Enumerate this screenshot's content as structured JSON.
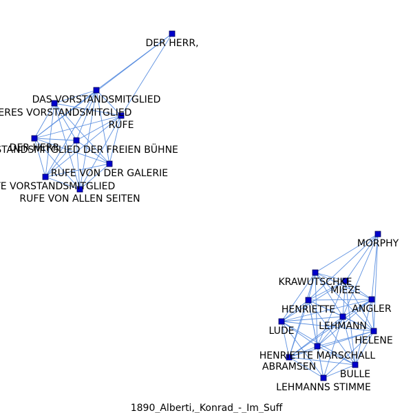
{
  "caption": "1890_Alberti,_Konrad_-_Im_Suff",
  "colors": {
    "node_fill": "#0000cc",
    "node_stroke": "#000055",
    "edge": "#5b8fe0"
  },
  "nodes": [
    {
      "id": "herr_komma",
      "label": "DER HERR,"
    },
    {
      "id": "das_vm",
      "label": "DAS VORSTANDSMITGLIED"
    },
    {
      "id": "anderes_vm",
      "label": "ANDERES VORSTANDSMITGLIED"
    },
    {
      "id": "rufe",
      "label": "RUFE"
    },
    {
      "id": "herr",
      "label": "DER HERR"
    },
    {
      "id": "vm_freie",
      "label": "VORSTANDSMITGLIED DER FREIEN BÜHNE"
    },
    {
      "id": "rufe_galerie",
      "label": "RUFE VON DER GALERIE"
    },
    {
      "id": "erste_vm",
      "label": "ERSTE VORSTANDSMITGLIED"
    },
    {
      "id": "rufe_allen",
      "label": "RUFE VON ALLEN SEITEN"
    },
    {
      "id": "morphy",
      "label": "MORPHY"
    },
    {
      "id": "krawutschke",
      "label": "KRAWUTSCHKE"
    },
    {
      "id": "mieze",
      "label": "MIEZE"
    },
    {
      "id": "henriette",
      "label": "HENRIETTE"
    },
    {
      "id": "angler",
      "label": "ANGLER"
    },
    {
      "id": "lehmann",
      "label": "LEHMANN"
    },
    {
      "id": "lude",
      "label": "LUDE"
    },
    {
      "id": "helene",
      "label": "HELENE"
    },
    {
      "id": "henriette_marschall",
      "label": "HENRIETTE MARSCHALL"
    },
    {
      "id": "abramsen",
      "label": "ABRAMSEN"
    },
    {
      "id": "bulle",
      "label": "BULLE"
    },
    {
      "id": "lehmanns_stimme",
      "label": "LEHMANNS STIMME"
    }
  ],
  "edges": [
    [
      "herr_komma",
      "das_vm"
    ],
    [
      "herr_komma",
      "rufe"
    ],
    [
      "herr_komma",
      "herr"
    ],
    [
      "das_vm",
      "anderes_vm"
    ],
    [
      "das_vm",
      "rufe"
    ],
    [
      "das_vm",
      "herr"
    ],
    [
      "das_vm",
      "vm_freie"
    ],
    [
      "das_vm",
      "rufe_galerie"
    ],
    [
      "das_vm",
      "erste_vm"
    ],
    [
      "das_vm",
      "rufe_allen"
    ],
    [
      "anderes_vm",
      "rufe"
    ],
    [
      "anderes_vm",
      "herr"
    ],
    [
      "anderes_vm",
      "vm_freie"
    ],
    [
      "anderes_vm",
      "rufe_galerie"
    ],
    [
      "anderes_vm",
      "erste_vm"
    ],
    [
      "anderes_vm",
      "rufe_allen"
    ],
    [
      "rufe",
      "herr"
    ],
    [
      "rufe",
      "vm_freie"
    ],
    [
      "rufe",
      "rufe_galerie"
    ],
    [
      "rufe",
      "erste_vm"
    ],
    [
      "rufe",
      "rufe_allen"
    ],
    [
      "herr",
      "vm_freie"
    ],
    [
      "herr",
      "rufe_galerie"
    ],
    [
      "herr",
      "erste_vm"
    ],
    [
      "herr",
      "rufe_allen"
    ],
    [
      "vm_freie",
      "rufe_galerie"
    ],
    [
      "vm_freie",
      "erste_vm"
    ],
    [
      "vm_freie",
      "rufe_allen"
    ],
    [
      "rufe_galerie",
      "erste_vm"
    ],
    [
      "rufe_galerie",
      "rufe_allen"
    ],
    [
      "erste_vm",
      "rufe_allen"
    ],
    [
      "morphy",
      "krawutschke"
    ],
    [
      "morphy",
      "mieze"
    ],
    [
      "morphy",
      "henriette"
    ],
    [
      "morphy",
      "angler"
    ],
    [
      "morphy",
      "lehmann"
    ],
    [
      "morphy",
      "helene"
    ],
    [
      "krawutschke",
      "mieze"
    ],
    [
      "krawutschke",
      "henriette"
    ],
    [
      "krawutschke",
      "angler"
    ],
    [
      "krawutschke",
      "lehmann"
    ],
    [
      "krawutschke",
      "lude"
    ],
    [
      "krawutschke",
      "helene"
    ],
    [
      "krawutschke",
      "henriette_marschall"
    ],
    [
      "krawutschke",
      "abramsen"
    ],
    [
      "mieze",
      "henriette"
    ],
    [
      "mieze",
      "angler"
    ],
    [
      "mieze",
      "lehmann"
    ],
    [
      "mieze",
      "lude"
    ],
    [
      "mieze",
      "helene"
    ],
    [
      "mieze",
      "henriette_marschall"
    ],
    [
      "mieze",
      "bulle"
    ],
    [
      "henriette",
      "angler"
    ],
    [
      "henriette",
      "lehmann"
    ],
    [
      "henriette",
      "lude"
    ],
    [
      "henriette",
      "helene"
    ],
    [
      "henriette",
      "henriette_marschall"
    ],
    [
      "henriette",
      "abramsen"
    ],
    [
      "henriette",
      "bulle"
    ],
    [
      "henriette",
      "lehmanns_stimme"
    ],
    [
      "angler",
      "lehmann"
    ],
    [
      "angler",
      "lude"
    ],
    [
      "angler",
      "helene"
    ],
    [
      "angler",
      "henriette_marschall"
    ],
    [
      "angler",
      "abramsen"
    ],
    [
      "angler",
      "bulle"
    ],
    [
      "lehmann",
      "lude"
    ],
    [
      "lehmann",
      "helene"
    ],
    [
      "lehmann",
      "henriette_marschall"
    ],
    [
      "lehmann",
      "abramsen"
    ],
    [
      "lehmann",
      "bulle"
    ],
    [
      "lehmann",
      "lehmanns_stimme"
    ],
    [
      "lude",
      "helene"
    ],
    [
      "lude",
      "henriette_marschall"
    ],
    [
      "lude",
      "abramsen"
    ],
    [
      "lude",
      "bulle"
    ],
    [
      "lude",
      "lehmanns_stimme"
    ],
    [
      "helene",
      "henriette_marschall"
    ],
    [
      "helene",
      "abramsen"
    ],
    [
      "helene",
      "bulle"
    ],
    [
      "helene",
      "lehmanns_stimme"
    ],
    [
      "henriette_marschall",
      "abramsen"
    ],
    [
      "henriette_marschall",
      "bulle"
    ],
    [
      "henriette_marschall",
      "lehmanns_stimme"
    ],
    [
      "abramsen",
      "bulle"
    ],
    [
      "abramsen",
      "lehmanns_stimme"
    ],
    [
      "bulle",
      "lehmanns_stimme"
    ]
  ]
}
